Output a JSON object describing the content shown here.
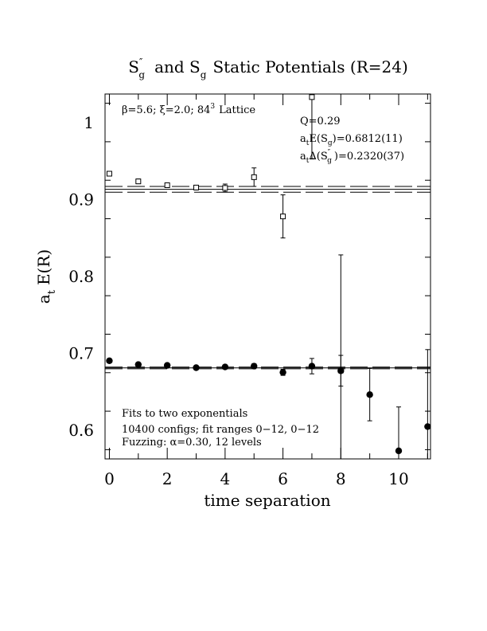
{
  "chart_data": {
    "type": "scatter",
    "title": {
      "s1": "S",
      "s1_sup": "″",
      "s1_sub": "g",
      "mid": "and S",
      "s2_sub": "g",
      "rest": "Static Potentials (R=24)"
    },
    "xlabel": "time separation",
    "ylabel": {
      "main": "a",
      "sub": "t",
      "rest": "E(R)"
    },
    "xlim": [
      -0.15,
      11.1
    ],
    "ylim": [
      0.563,
      1.037
    ],
    "xticks": [
      0,
      2,
      4,
      6,
      8,
      10
    ],
    "yticks": [
      0.6,
      0.7,
      0.8,
      0.9,
      1.0
    ],
    "ytick_labels": [
      "0.6",
      "0.7",
      "0.8",
      "0.9",
      "1"
    ],
    "lattice_label": {
      "beta": "β=5.6; ξ=2.0; 84",
      "beta_sup": "3",
      "lattice": "Lattice"
    },
    "fit_info": {
      "q": "Q=0.29",
      "line2_pre": "a",
      "line2_sub": "t",
      "line2_mid": "E(S",
      "line2_sub2": "g",
      "line2_post": ")=0.6812(11)",
      "line3_pre": "a",
      "line3_sub": "t",
      "line3_mid": "Δ(S",
      "line3_sup": "″",
      "line3_sub2": "g",
      "line3_post": ")=0.2320(37)"
    },
    "notes": [
      "Fits to two exponentials",
      "10400 configs; fit ranges 0−12, 0−12",
      "Fuzzing: α=0.30, 12 levels"
    ],
    "series": [
      {
        "marker": "open-square",
        "points": [
          {
            "x": 0,
            "y": 0.9335,
            "err": 0.003
          },
          {
            "x": 1,
            "y": 0.9235,
            "err": 0.003
          },
          {
            "x": 2,
            "y": 0.9185,
            "err": 0.003
          },
          {
            "x": 3,
            "y": 0.9155,
            "err": 0.003
          },
          {
            "x": 4,
            "y": 0.915,
            "err": 0.005
          },
          {
            "x": 5,
            "y": 0.929,
            "err": 0.012
          },
          {
            "x": 6,
            "y": 0.878,
            "err": 0.028
          },
          {
            "x": 7,
            "y": 1.033,
            "err": 0.08
          },
          {
            "x": 8,
            "y": 0.678,
            "err": 0.15
          }
        ]
      },
      {
        "marker": "filled-circle",
        "points": [
          {
            "x": 0,
            "y": 0.6905,
            "err": 0.002
          },
          {
            "x": 1,
            "y": 0.6855,
            "err": 0.002
          },
          {
            "x": 2,
            "y": 0.6845,
            "err": 0.002
          },
          {
            "x": 3,
            "y": 0.6815,
            "err": 0.002
          },
          {
            "x": 4,
            "y": 0.6825,
            "err": 0.002
          },
          {
            "x": 5,
            "y": 0.6835,
            "err": 0.003
          },
          {
            "x": 6,
            "y": 0.6755,
            "err": 0.004
          },
          {
            "x": 7,
            "y": 0.6835,
            "err": 0.01
          },
          {
            "x": 8,
            "y": 0.6775,
            "err": 0.02
          },
          {
            "x": 9,
            "y": 0.6465,
            "err": 0.034
          },
          {
            "x": 10,
            "y": 0.5735,
            "err": 0.057
          },
          {
            "x": 11,
            "y": 0.605,
            "err": 0.1
          }
        ]
      }
    ],
    "fits": [
      {
        "center": 0.9132,
        "band": [
          0.9095,
          0.9169
        ]
      },
      {
        "center": 0.6812,
        "band": [
          0.6801,
          0.6823
        ]
      }
    ]
  }
}
